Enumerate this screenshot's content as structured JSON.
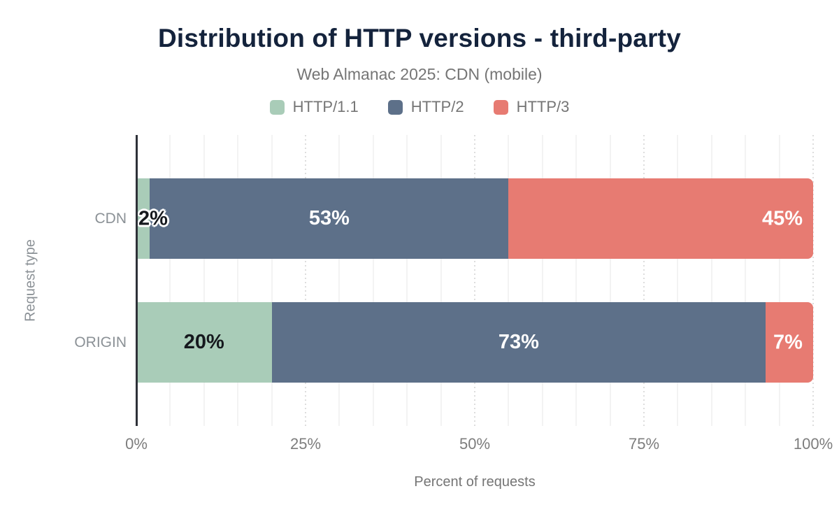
{
  "chart_data": {
    "type": "bar",
    "orientation": "horizontal",
    "stacked": true,
    "title": "Distribution of HTTP versions - third-party",
    "subtitle": "Web Almanac 2025: CDN (mobile)",
    "xlabel": "Percent of requests",
    "ylabel": "Request type",
    "xlim": [
      0,
      100
    ],
    "grid": {
      "minor_step_pct": 5,
      "major_step_pct": 25,
      "minor_style": "solid",
      "major_style": "dotted"
    },
    "legend_position": "top",
    "xticks": [
      {
        "value": 0,
        "label": "0%"
      },
      {
        "value": 25,
        "label": "25%"
      },
      {
        "value": 50,
        "label": "50%"
      },
      {
        "value": 75,
        "label": "75%"
      },
      {
        "value": 100,
        "label": "100%"
      }
    ],
    "categories": [
      "CDN",
      "ORIGIN"
    ],
    "series": [
      {
        "name": "HTTP/1.1",
        "color": "#a9ccb8",
        "label_color": "#15181d",
        "values": [
          2,
          20
        ],
        "labels": [
          "2%",
          "20%"
        ],
        "label_align": [
          "start",
          "center"
        ],
        "label_outline": [
          true,
          false
        ]
      },
      {
        "name": "HTTP/2",
        "color": "#5d7089",
        "label_color": "#ffffff",
        "values": [
          53,
          73
        ],
        "labels": [
          "53%",
          "73%"
        ],
        "label_align": [
          "center",
          "center"
        ],
        "label_outline": [
          false,
          false
        ]
      },
      {
        "name": "HTTP/3",
        "color": "#e77b72",
        "label_color": "#ffffff",
        "values": [
          45,
          7
        ],
        "labels": [
          "45%",
          "7%"
        ],
        "label_align": [
          "end",
          "end"
        ],
        "label_outline": [
          false,
          false
        ]
      }
    ]
  },
  "style": {
    "title_color": "#14233c",
    "text_color": "#757575",
    "axis_line_color": "#2e3138"
  }
}
